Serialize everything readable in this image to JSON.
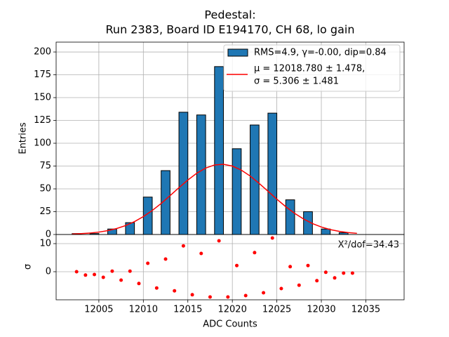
{
  "chart_data": [
    {
      "type": "histogram",
      "title": [
        "Pedestal:",
        "Run 2383, Board ID E194170, CH 68, lo gain"
      ],
      "ylabel": "Entries",
      "name": "RMS=4.9, γ=-0.00, dip=0.84",
      "color": "#1f77b4",
      "bins": [
        12002,
        12003,
        12004,
        12005,
        12006,
        12007,
        12008,
        12009,
        12010,
        12011,
        12012,
        12013,
        12014,
        12015,
        12016,
        12017,
        12018,
        12019,
        12020,
        12021,
        12022,
        12023,
        12024,
        12025,
        12026,
        12027,
        12028,
        12029,
        12030,
        12031,
        12032,
        12033,
        12034
      ],
      "values": [
        1,
        0,
        1,
        0,
        6,
        0,
        13,
        0,
        41,
        0,
        70,
        0,
        134,
        0,
        131,
        0,
        184,
        0,
        94,
        0,
        120,
        0,
        133,
        0,
        38,
        0,
        25,
        0,
        6,
        0,
        2,
        0
      ],
      "fit": {
        "name": [
          "μ = 12018.780 ± 1.478,",
          "σ = 5.306 ± 1.481"
        ],
        "color": "#ff0000",
        "x": [
          12002,
          12003,
          12004,
          12005,
          12006,
          12007,
          12008,
          12009,
          12010,
          12011,
          12012,
          12013,
          12014,
          12015,
          12016,
          12017,
          12018,
          12019,
          12020,
          12021,
          12022,
          12023,
          12024,
          12025,
          12026,
          12027,
          12028,
          12029,
          12030,
          12031,
          12032,
          12033,
          12034
        ],
        "values": [
          0.52,
          0.93,
          1.59,
          2.64,
          4.24,
          6.54,
          9.78,
          14.1,
          19.6,
          26.3,
          34.0,
          42.6,
          51.3,
          59.7,
          67.1,
          72.8,
          76.2,
          76.9,
          75.0,
          70.6,
          64.1,
          56.1,
          47.5,
          38.7,
          30.5,
          23.2,
          17.0,
          12.0,
          8.2,
          5.4,
          3.5,
          2.1,
          1.3
        ]
      },
      "ylim": [
        0,
        210.8
      ],
      "yticks": [
        0,
        25,
        50,
        75,
        100,
        125,
        150,
        175,
        200
      ],
      "grid": true,
      "legend": "upper right"
    },
    {
      "type": "scatter",
      "xlabel": "ADC Counts",
      "ylabel": "σ",
      "annotation": "X²/dof=34.43",
      "color": "#ff0000",
      "x": [
        12002.5,
        12003.5,
        12004.5,
        12005.5,
        12006.5,
        12007.5,
        12008.5,
        12009.5,
        12010.5,
        12011.5,
        12012.5,
        12013.5,
        12014.5,
        12015.5,
        12016.5,
        12017.5,
        12018.5,
        12019.5,
        12020.5,
        12021.5,
        12022.5,
        12023.5,
        12024.5,
        12025.5,
        12026.5,
        12027.5,
        12028.5,
        12029.5,
        12030.5,
        12031.5,
        12032.5,
        12033.5
      ],
      "values": [
        0,
        -1.2,
        -1,
        -2,
        0.2,
        -3,
        0.2,
        -4.2,
        3,
        -5.8,
        4.5,
        -6.8,
        9.2,
        -8.2,
        6.5,
        -9,
        11,
        -9,
        2.2,
        -8.5,
        6.8,
        -7.5,
        12,
        -6,
        1.8,
        -4.8,
        2.2,
        -3.2,
        -0.2,
        -2.2,
        -0.5,
        -0.5
      ],
      "xlim": [
        12000.2,
        12039.3
      ],
      "xticks": [
        12005,
        12010,
        12015,
        12020,
        12025,
        12030,
        12035
      ],
      "ylim": [
        -10,
        13.25
      ],
      "yticks": [
        0,
        10
      ],
      "grid": true
    }
  ]
}
